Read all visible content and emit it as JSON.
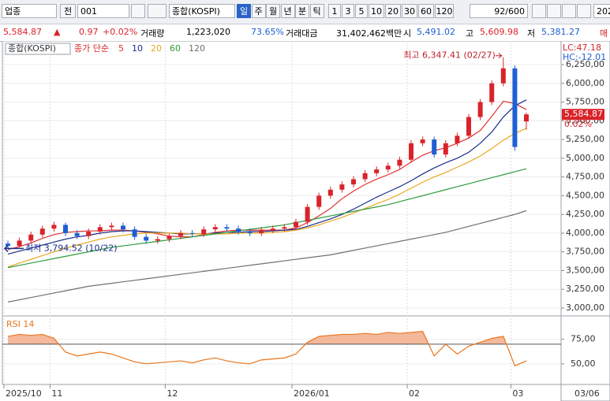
{
  "toolbar": {
    "market": "업종",
    "all": "전",
    "code": "001",
    "name": "종합(KOSPI)",
    "periods": [
      "일",
      "주",
      "월",
      "년",
      "분",
      "틱"
    ],
    "intervals": [
      "1",
      "3",
      "5",
      "10",
      "20",
      "30",
      "60",
      "120"
    ],
    "count": "92/600",
    "date_fragment": "202"
  },
  "info": {
    "price": "5,584.87",
    "arrow": "▲",
    "change": "0.97",
    "change_pct": "+0.02%",
    "volume_label": "거래량",
    "volume": "1,223,020",
    "volume_ratio": "73.65%",
    "amount_label": "거래대금",
    "amount": "31,402,462백만",
    "open_label": "시",
    "open": "5,491.02",
    "high_label": "고",
    "high": "5,609.98",
    "low_label": "저",
    "low": "5,381.27",
    "extra": "매"
  },
  "chart_data": {
    "type": "candlestick",
    "legend_title": "종합(KOSPI)",
    "ma_label": "종가 단순",
    "lc": "LC:47.18",
    "hc": "HC:-12.01",
    "price_label": "5,584.87",
    "pct_label": "0.02%",
    "high_note": "최고 6,347.41 (02/27)",
    "low_note": "최저 3,794.52 (10/22)",
    "current_date": "03/06",
    "up_color": "#d9232a",
    "down_color": "#1e5fd3",
    "grid": true,
    "categories": [
      "2025/10",
      null,
      null,
      null,
      "11",
      null,
      null,
      null,
      null,
      null,
      null,
      null,
      null,
      null,
      "12",
      null,
      null,
      null,
      null,
      null,
      null,
      null,
      null,
      null,
      null,
      "2026/01",
      null,
      null,
      null,
      null,
      null,
      null,
      null,
      null,
      null,
      "02",
      null,
      null,
      null,
      null,
      null,
      null,
      null,
      null,
      "03",
      null
    ],
    "candles": {
      "open": [
        3860,
        3830,
        3900,
        3980,
        4060,
        4110,
        4000,
        3960,
        4020,
        4080,
        4100,
        4050,
        3950,
        3900,
        3920,
        3960,
        4000,
        3990,
        4050,
        4080,
        4060,
        4020,
        4000,
        4040,
        4060,
        4080,
        4150,
        4350,
        4500,
        4580,
        4650,
        4720,
        4800,
        4850,
        4900,
        4980,
        5200,
        5250,
        5050,
        5200,
        5300,
        5550,
        5750,
        6000,
        6200,
        5491.02
      ],
      "high": [
        3900,
        3940,
        4020,
        4100,
        4150,
        4140,
        4040,
        4060,
        4120,
        4140,
        4140,
        4090,
        3990,
        3960,
        3990,
        4040,
        4040,
        4090,
        4120,
        4120,
        4100,
        4060,
        4080,
        4100,
        4120,
        4190,
        4390,
        4540,
        4620,
        4690,
        4760,
        4840,
        4890,
        4940,
        5020,
        5240,
        5290,
        5290,
        5240,
        5340,
        5590,
        5790,
        6040,
        6347.41,
        6240,
        5609.98
      ],
      "low": [
        3794.52,
        3810,
        3860,
        3940,
        4020,
        3960,
        3920,
        3920,
        3980,
        4040,
        4010,
        3910,
        3860,
        3860,
        3880,
        3920,
        3950,
        3950,
        4010,
        4020,
        3980,
        3960,
        3960,
        4000,
        4020,
        4040,
        4110,
        4310,
        4460,
        4540,
        4610,
        4680,
        4760,
        4810,
        4860,
        4940,
        5160,
        5010,
        5010,
        5160,
        5260,
        5510,
        5710,
        5960,
        5100,
        5381.27
      ],
      "close": [
        3830,
        3900,
        3980,
        4060,
        4110,
        4000,
        3960,
        4020,
        4080,
        4100,
        4050,
        3950,
        3900,
        3920,
        3960,
        4000,
        3990,
        4050,
        4080,
        4060,
        4020,
        4000,
        4040,
        4060,
        4080,
        4150,
        4350,
        4500,
        4580,
        4650,
        4720,
        4800,
        4850,
        4900,
        4980,
        5200,
        5250,
        5050,
        5200,
        5300,
        5550,
        5750,
        6000,
        6200,
        5150,
        5584.87
      ]
    },
    "high_index": 43,
    "low_index": 0,
    "series": [
      {
        "name": "5",
        "color": "#e03030",
        "values": [
          3780,
          3820,
          3870,
          3930,
          3980,
          4010,
          4020,
          4030,
          4030,
          4040,
          4040,
          4030,
          4010,
          3990,
          3960,
          3950,
          3950,
          3980,
          4010,
          4030,
          4040,
          4040,
          4040,
          4040,
          4040,
          4070,
          4140,
          4230,
          4330,
          4460,
          4560,
          4650,
          4720,
          4780,
          4850,
          4950,
          5040,
          5100,
          5140,
          5200,
          5270,
          5370,
          5560,
          5760,
          5730,
          5650
        ]
      },
      {
        "name": "10",
        "color": "#1a2e8c",
        "values": [
          3720,
          3760,
          3800,
          3840,
          3880,
          3920,
          3950,
          3970,
          4000,
          4020,
          4030,
          4030,
          4020,
          4010,
          4000,
          3990,
          3990,
          3990,
          4000,
          4010,
          4010,
          4020,
          4020,
          4030,
          4040,
          4050,
          4090,
          4140,
          4190,
          4250,
          4320,
          4400,
          4480,
          4550,
          4620,
          4700,
          4790,
          4870,
          4940,
          5000,
          5080,
          5200,
          5350,
          5550,
          5700,
          5780
        ]
      },
      {
        "name": "20",
        "color": "#e8a820",
        "values": [
          3550,
          3600,
          3650,
          3700,
          3750,
          3800,
          3840,
          3880,
          3920,
          3950,
          3970,
          3990,
          4000,
          4000,
          4000,
          4000,
          3990,
          3990,
          3990,
          3990,
          4000,
          4000,
          4000,
          4010,
          4020,
          4040,
          4070,
          4110,
          4160,
          4210,
          4270,
          4330,
          4390,
          4450,
          4520,
          4600,
          4680,
          4750,
          4810,
          4880,
          4950,
          5030,
          5130,
          5240,
          5330,
          5400
        ]
      },
      {
        "name": "60",
        "color": "#2e9b3c",
        "values": [
          3540,
          3570,
          3600,
          3630,
          3660,
          3690,
          3720,
          3750,
          3780,
          3810,
          3830,
          3850,
          3870,
          3890,
          3910,
          3930,
          3950,
          3970,
          3990,
          4010,
          4030,
          4050,
          4070,
          4090,
          4110,
          4140,
          4170,
          4200,
          4230,
          4260,
          4290,
          4320,
          4350,
          4380,
          4420,
          4460,
          4500,
          4540,
          4580,
          4620,
          4660,
          4700,
          4740,
          4780,
          4820,
          4860
        ]
      },
      {
        "name": "120",
        "color": "#707070",
        "values": [
          3080,
          3110,
          3140,
          3170,
          3200,
          3230,
          3260,
          3290,
          3310,
          3330,
          3350,
          3370,
          3390,
          3410,
          3430,
          3450,
          3470,
          3490,
          3510,
          3530,
          3550,
          3570,
          3590,
          3610,
          3630,
          3650,
          3670,
          3690,
          3710,
          3740,
          3770,
          3800,
          3830,
          3860,
          3890,
          3920,
          3950,
          3980,
          4010,
          4050,
          4090,
          4130,
          4170,
          4210,
          4250,
          4300
        ]
      }
    ],
    "ylim": [
      2905,
      6513
    ],
    "yticks": [
      {
        "value": 3000,
        "label": "3,000,00"
      },
      {
        "value": 3250,
        "label": "3,250,00"
      },
      {
        "value": 3500,
        "label": "3,500,00"
      },
      {
        "value": 3750,
        "label": "3,750,00"
      },
      {
        "value": 4000,
        "label": "4,000,00"
      },
      {
        "value": 4250,
        "label": "4,250,00"
      },
      {
        "value": 4500,
        "label": "4,500,00"
      },
      {
        "value": 4750,
        "label": "4,750,00"
      },
      {
        "value": 5000,
        "label": "5,000,00"
      },
      {
        "value": 5250,
        "label": "5,250,00"
      },
      {
        "value": 5500,
        "label": "5,500,00"
      },
      {
        "value": 5750,
        "label": "5,750,00"
      },
      {
        "value": 6000,
        "label": "6,000,00"
      },
      {
        "value": 6250,
        "label": "6,250,00"
      }
    ],
    "rsi": {
      "name": "RSI 14",
      "color": "#e8761e",
      "fill": "#f4b89a",
      "threshold": 70,
      "ylim": [
        29,
        98
      ],
      "yticks": [
        {
          "value": 50,
          "label": "50,00"
        },
        {
          "value": 75,
          "label": "75,00"
        }
      ],
      "values": [
        78,
        80,
        79,
        80,
        76,
        62,
        58,
        60,
        62,
        60,
        56,
        52,
        50,
        51,
        52,
        53,
        51,
        54,
        56,
        53,
        51,
        50,
        54,
        55,
        56,
        60,
        72,
        78,
        79,
        80,
        80,
        81,
        80,
        82,
        81,
        82,
        83,
        58,
        70,
        60,
        68,
        72,
        76,
        78,
        48,
        53
      ]
    }
  }
}
